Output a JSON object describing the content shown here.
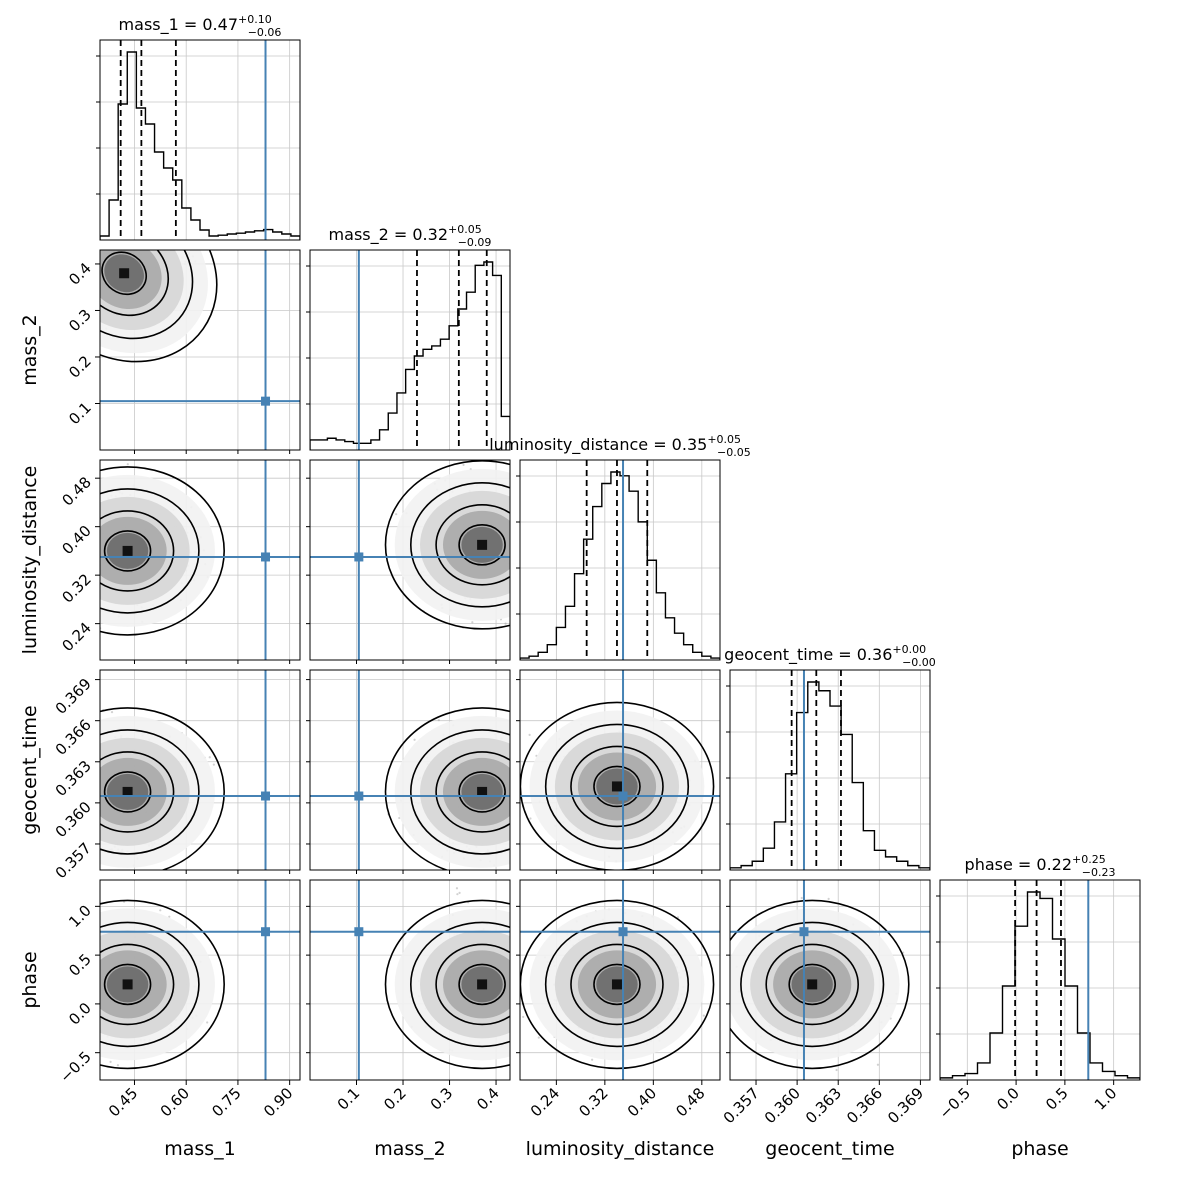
{
  "chart_data": {
    "type": "corner",
    "grid": true,
    "parameters": [
      {
        "key": "mass_1",
        "label": "mass_1",
        "range": [
          0.35,
          0.93
        ],
        "ticks": [
          "0.45",
          "0.60",
          "0.75",
          "0.90"
        ],
        "tick_values": [
          0.45,
          0.6,
          0.75,
          0.9
        ],
        "truth": 0.83,
        "median": 0.47,
        "err_plus": "+0.10",
        "err_minus": "−0.06",
        "quantiles": [
          0.41,
          0.47,
          0.57
        ],
        "title_text": "mass_1 = 0.47",
        "hist": [
          1,
          10,
          34,
          47,
          33,
          29,
          22,
          18,
          15,
          8,
          5,
          2.5,
          1,
          1.2,
          1.5,
          1.7,
          2,
          2.3,
          2.6,
          2,
          1.5,
          1
        ]
      },
      {
        "key": "mass_2",
        "label": "mass_2",
        "range": [
          0.0,
          0.43
        ],
        "ticks": [
          "0.1",
          "0.2",
          "0.3",
          "0.4"
        ],
        "tick_values": [
          0.1,
          0.2,
          0.3,
          0.4
        ],
        "truth": 0.105,
        "median": 0.32,
        "err_plus": "+0.05",
        "err_minus": "−0.09",
        "quantiles": [
          0.23,
          0.32,
          0.38
        ],
        "title_text": "mass_2 = 0.32",
        "hist": [
          3,
          3,
          3.5,
          3,
          2.5,
          2,
          2,
          3,
          6,
          11,
          17,
          24,
          28,
          30,
          31,
          33,
          37,
          42,
          47,
          55,
          56,
          52,
          10
        ]
      },
      {
        "key": "luminosity_distance",
        "label": "luminosity_distance",
        "range": [
          0.18,
          0.51
        ],
        "ticks": [
          "0.24",
          "0.32",
          "0.40",
          "0.48"
        ],
        "tick_values": [
          0.24,
          0.32,
          0.4,
          0.48
        ],
        "truth": 0.35,
        "median": 0.35,
        "err_plus": "+0.05",
        "err_minus": "−0.05",
        "quantiles": [
          0.29,
          0.34,
          0.39
        ],
        "title_text": "luminosity_distance = 0.35",
        "hist": [
          1,
          2,
          4,
          8,
          17,
          28,
          45,
          63,
          80,
          92,
          98,
          96,
          88,
          72,
          52,
          35,
          22,
          14,
          8,
          4,
          2,
          1
        ]
      },
      {
        "key": "geocent_time",
        "label": "geocent_time",
        "range": [
          0.3551,
          0.3697
        ],
        "ticks": [
          "0.357",
          "0.360",
          "0.363",
          "0.366",
          "0.369"
        ],
        "tick_values": [
          0.357,
          0.36,
          0.363,
          0.366,
          0.369
        ],
        "truth": 0.3605,
        "median": 0.36,
        "err_plus": "+0.00",
        "err_minus": "−0.00",
        "quantiles": [
          0.3596,
          0.3614,
          0.3632
        ],
        "title_text": "geocent_time = 0.36",
        "hist": [
          1,
          2,
          4,
          10,
          22,
          44,
          72,
          86,
          82,
          75,
          62,
          40,
          18,
          9,
          6,
          4,
          2,
          1
        ]
      },
      {
        "key": "phase",
        "label": "phase",
        "range": [
          -0.78,
          1.27
        ],
        "ticks": [
          "−0.5",
          "0.0",
          "0.5",
          "1.0"
        ],
        "tick_values": [
          -0.5,
          0.0,
          0.5,
          1.0
        ],
        "truth": 0.74,
        "median": 0.22,
        "err_plus": "+0.25",
        "err_minus": "−0.23",
        "quantiles": [
          -0.01,
          0.21,
          0.46
        ],
        "title_text": "phase = 0.22",
        "hist": [
          1,
          2,
          3,
          8,
          22,
          44,
          72,
          88,
          85,
          66,
          44,
          22,
          8,
          4,
          2,
          1
        ]
      }
    ],
    "density_peaks": {
      "mass_1|mass_2": [
        0.42,
        0.38
      ],
      "mass_1|luminosity_distance": [
        0.43,
        0.36
      ],
      "mass_1|geocent_time": [
        0.43,
        0.3608
      ],
      "mass_1|phase": [
        0.43,
        0.2
      ],
      "mass_2|luminosity_distance": [
        0.37,
        0.37
      ],
      "mass_2|geocent_time": [
        0.37,
        0.3608
      ],
      "mass_2|phase": [
        0.37,
        0.2
      ],
      "luminosity_distance|geocent_time": [
        0.34,
        0.3612
      ],
      "luminosity_distance|phase": [
        0.34,
        0.2
      ],
      "geocent_time|phase": [
        0.3611,
        0.2
      ]
    },
    "truth_color": "#4682b4",
    "contour_color": "#000000",
    "scatter_color": "#9a9a9a",
    "grid_color": "#c8c8c8"
  }
}
